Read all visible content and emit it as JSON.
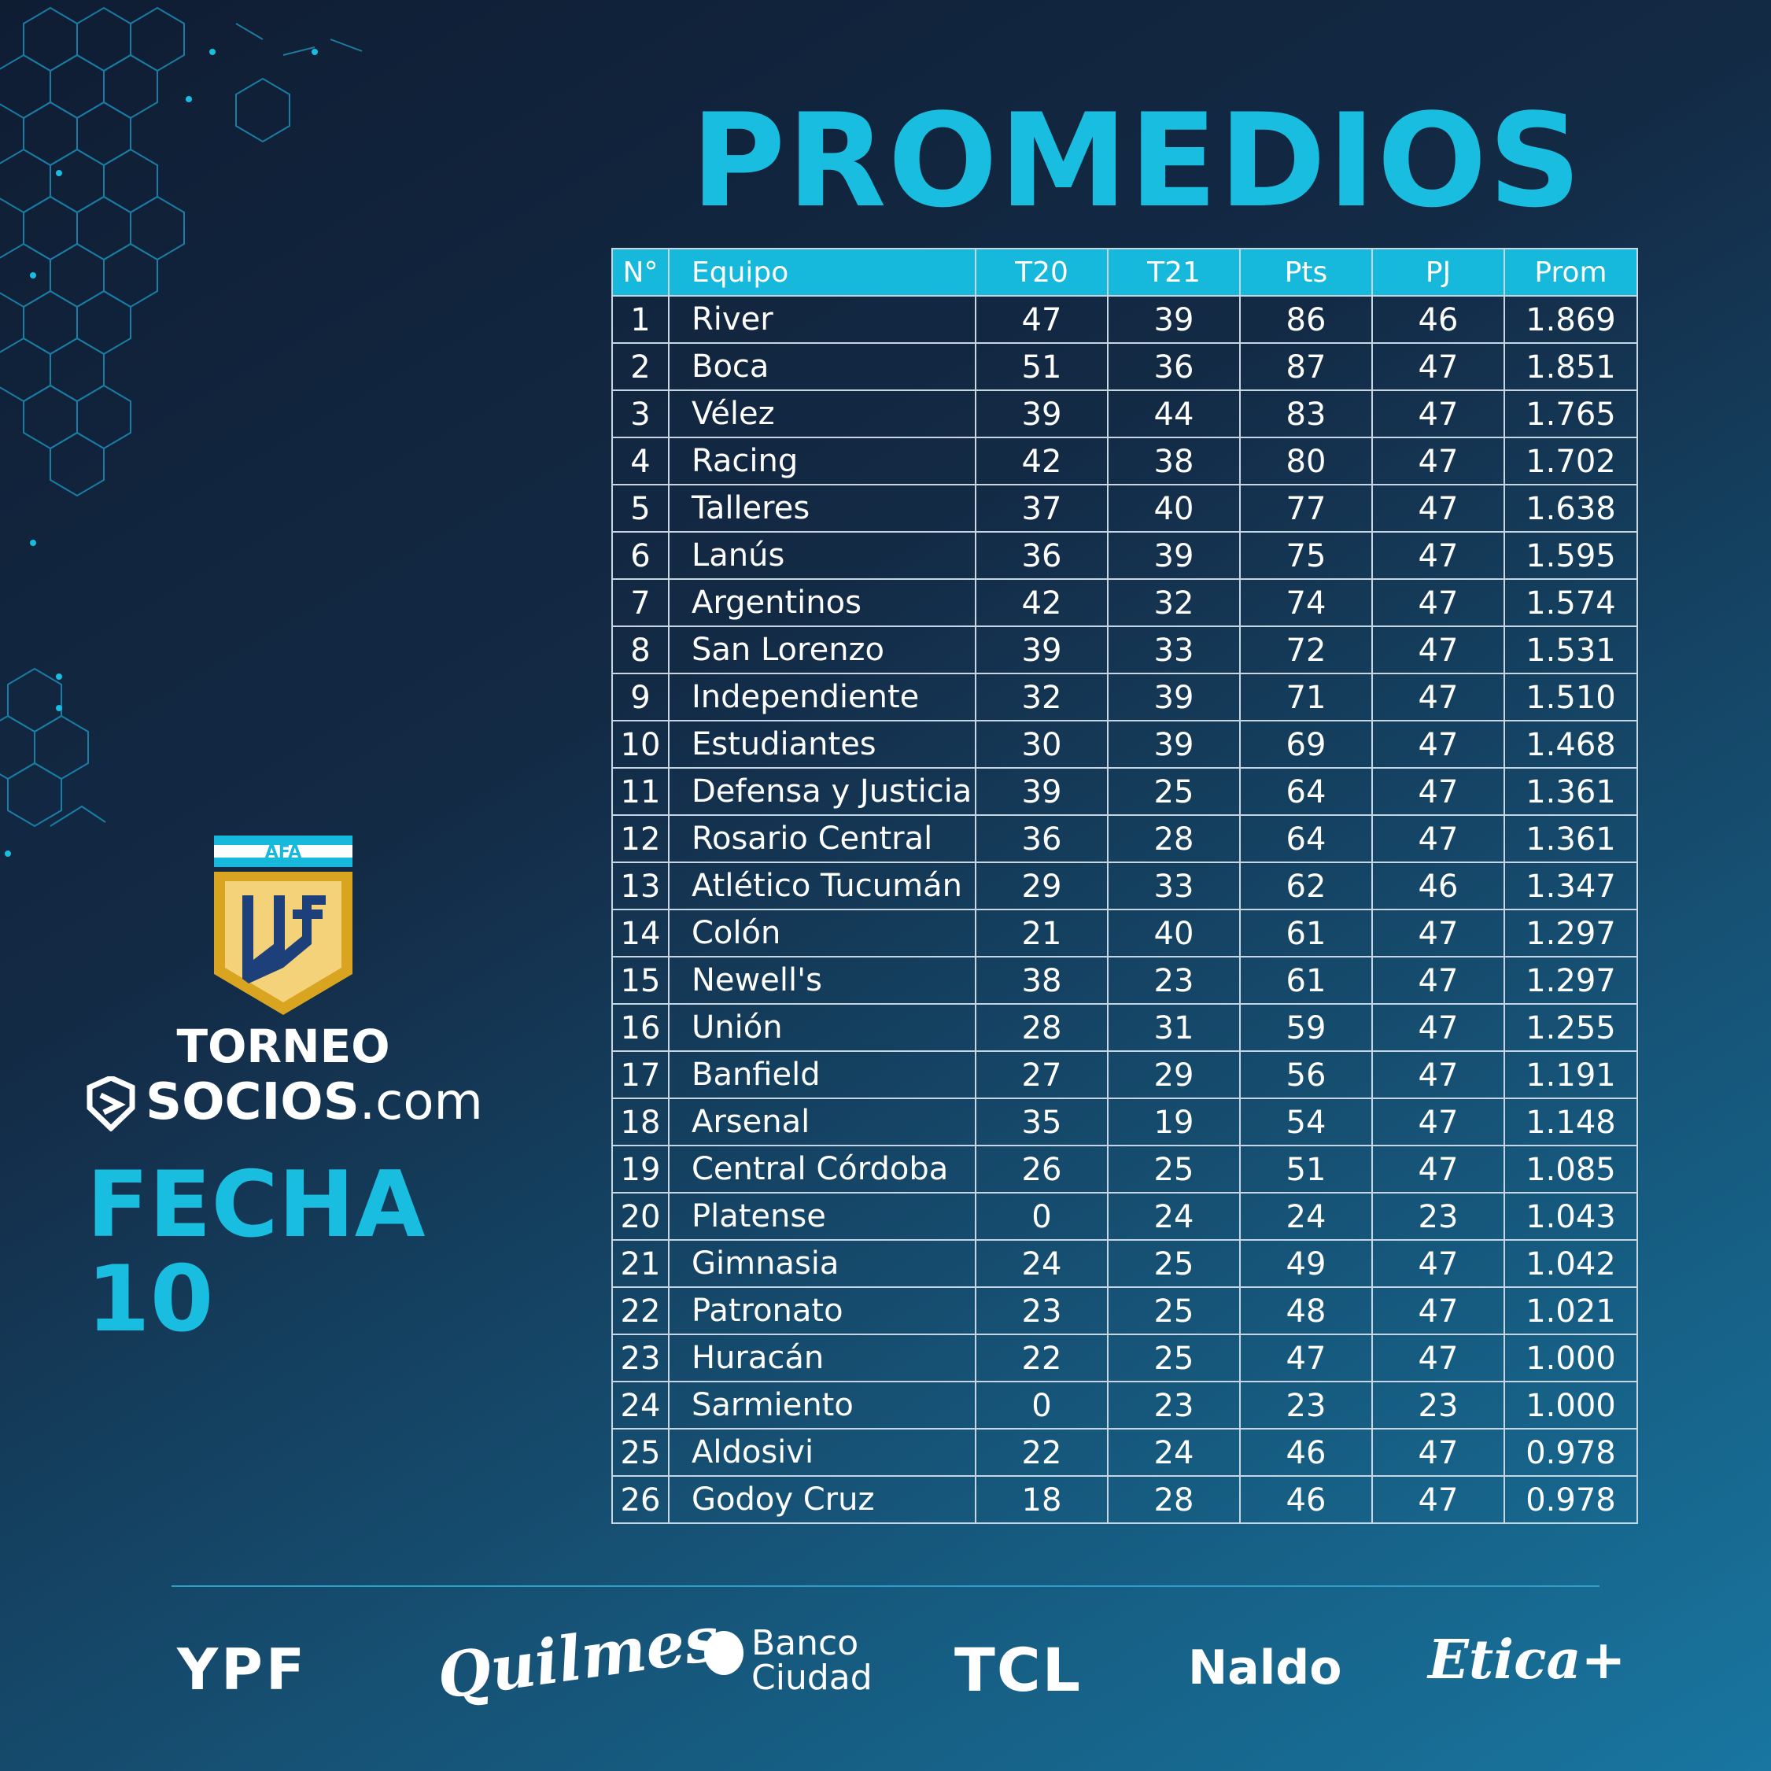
{
  "title": "PROMEDIOS",
  "table": {
    "headers": [
      "N°",
      "Equipo",
      "T20",
      "T21",
      "Pts",
      "PJ",
      "Prom"
    ],
    "rows": [
      [
        "1",
        "River",
        "47",
        "39",
        "86",
        "46",
        "1.869"
      ],
      [
        "2",
        "Boca",
        "51",
        "36",
        "87",
        "47",
        "1.851"
      ],
      [
        "3",
        "Vélez",
        "39",
        "44",
        "83",
        "47",
        "1.765"
      ],
      [
        "4",
        "Racing",
        "42",
        "38",
        "80",
        "47",
        "1.702"
      ],
      [
        "5",
        "Talleres",
        "37",
        "40",
        "77",
        "47",
        "1.638"
      ],
      [
        "6",
        "Lanús",
        "36",
        "39",
        "75",
        "47",
        "1.595"
      ],
      [
        "7",
        "Argentinos",
        "42",
        "32",
        "74",
        "47",
        "1.574"
      ],
      [
        "8",
        "San Lorenzo",
        "39",
        "33",
        "72",
        "47",
        "1.531"
      ],
      [
        "9",
        "Independiente",
        "32",
        "39",
        "71",
        "47",
        "1.510"
      ],
      [
        "10",
        "Estudiantes",
        "30",
        "39",
        "69",
        "47",
        "1.468"
      ],
      [
        "11",
        "Defensa y Justicia",
        "39",
        "25",
        "64",
        "47",
        "1.361"
      ],
      [
        "12",
        "Rosario Central",
        "36",
        "28",
        "64",
        "47",
        "1.361"
      ],
      [
        "13",
        "Atlético Tucumán",
        "29",
        "33",
        "62",
        "46",
        "1.347"
      ],
      [
        "14",
        "Colón",
        "21",
        "40",
        "61",
        "47",
        "1.297"
      ],
      [
        "15",
        "Newell's",
        "38",
        "23",
        "61",
        "47",
        "1.297"
      ],
      [
        "16",
        "Unión",
        "28",
        "31",
        "59",
        "47",
        "1.255"
      ],
      [
        "17",
        "Banfield",
        "27",
        "29",
        "56",
        "47",
        "1.191"
      ],
      [
        "18",
        "Arsenal",
        "35",
        "19",
        "54",
        "47",
        "1.148"
      ],
      [
        "19",
        "Central Córdoba",
        "26",
        "25",
        "51",
        "47",
        "1.085"
      ],
      [
        "20",
        "Platense",
        "0",
        "24",
        "24",
        "23",
        "1.043"
      ],
      [
        "21",
        "Gimnasia",
        "24",
        "25",
        "49",
        "47",
        "1.042"
      ],
      [
        "22",
        "Patronato",
        "23",
        "25",
        "48",
        "47",
        "1.021"
      ],
      [
        "23",
        "Huracán",
        "22",
        "25",
        "47",
        "47",
        "1.000"
      ],
      [
        "24",
        "Sarmiento",
        "0",
        "23",
        "23",
        "23",
        "1.000"
      ],
      [
        "25",
        "Aldosivi",
        "22",
        "24",
        "46",
        "47",
        "0.978"
      ],
      [
        "26",
        "Godoy Cruz",
        "18",
        "28",
        "46",
        "47",
        "0.978"
      ]
    ]
  },
  "branding": {
    "afa": "AFA",
    "lpf": "LPF",
    "torneo": "TORNEO",
    "socios_bold": "SOCIOS",
    "socios_rest": ".com",
    "fecha": "FECHA 10"
  },
  "sponsors": {
    "ypf": "YPF",
    "quilmes": "Quilmes",
    "banco_line1": "Banco",
    "banco_line2": "Ciudad",
    "tcl": "TCL",
    "naldo": "Naldo",
    "etica": "Etica+"
  },
  "colors": {
    "accent": "#19bde0",
    "header_bg": "#16b8dc",
    "bg_dark": "#0f1d33",
    "bg_light": "#1876a0",
    "shield_gold": "#d9a520",
    "shield_cream": "#f3d27a",
    "shield_blue": "#1d3f7a"
  }
}
